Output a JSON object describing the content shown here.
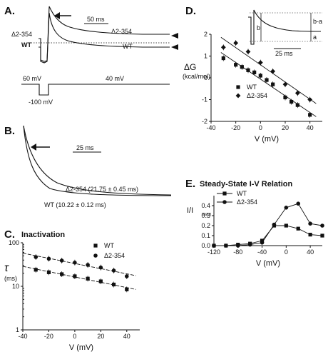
{
  "panels": {
    "A": {
      "label": "A.",
      "scale_bar": "50 ms",
      "trace_labels": {
        "mut_left": "Δ2-354",
        "wt_left": "WT",
        "mut_right": "Δ2-354",
        "wt_right": "WT"
      },
      "protocol": {
        "holding": "60 mV",
        "step": "40 mV",
        "pre": "-100 mV"
      }
    },
    "B": {
      "label": "B.",
      "scale_bar": "25 ms",
      "mut_label": "Δ2-354 (21.75 ± 0.45 ms)",
      "wt_label": "WT (10.22 ± 0.12 ms)"
    },
    "C": {
      "label": "C.",
      "title": "Inactivation"
    },
    "D": {
      "label": "D.",
      "scale_bar": "25 ms",
      "inset_labels": [
        "b",
        "a",
        "b-a"
      ]
    },
    "E": {
      "label": "E.",
      "title": "Steady-State I-V Relation"
    }
  },
  "chart_data": [
    {
      "panel": "C",
      "type": "scatter",
      "title": "Inactivation",
      "xlabel": "V (mV)",
      "ylabel": "τ (ms)",
      "xlim": [
        -40,
        50
      ],
      "ylim": [
        1,
        100
      ],
      "yscale": "log",
      "xticks": [
        -40,
        -20,
        0,
        20,
        40
      ],
      "yticks": [
        1,
        10,
        100
      ],
      "legend_position": "top-right",
      "series": [
        {
          "name": "WT",
          "marker": "square",
          "x": [
            -30,
            -20,
            -10,
            0,
            10,
            20,
            30,
            40
          ],
          "y": [
            24,
            21,
            19,
            17,
            15,
            13,
            11,
            8.5
          ]
        },
        {
          "name": "Δ2-354",
          "marker": "circle",
          "x": [
            -30,
            -20,
            -10,
            0,
            10,
            20,
            30,
            40
          ],
          "y": [
            47,
            43,
            39,
            35,
            31,
            27,
            23,
            17
          ]
        }
      ]
    },
    {
      "panel": "D",
      "type": "scatter",
      "xlabel": "V (mV)",
      "ylabel": "ΔG (kcal/mol)",
      "xlim": [
        -40,
        50
      ],
      "ylim": [
        -2,
        2
      ],
      "xticks": [
        -40,
        -20,
        0,
        20,
        40
      ],
      "yticks": [
        -2,
        -1,
        0,
        1,
        2
      ],
      "legend_position": "bottom-left",
      "series": [
        {
          "name": "WT",
          "marker": "square",
          "x": [
            -30,
            -20,
            -15,
            -10,
            -5,
            0,
            5,
            10,
            20,
            25,
            30,
            40
          ],
          "y": [
            0.9,
            0.6,
            0.5,
            0.35,
            0.25,
            0.1,
            -0.1,
            -0.3,
            -0.9,
            -1.1,
            -1.25,
            -1.7
          ]
        },
        {
          "name": "Δ2-354",
          "marker": "diamond",
          "x": [
            -30,
            -20,
            -10,
            0,
            10,
            20,
            30,
            40
          ],
          "y": [
            1.4,
            1.6,
            1.2,
            0.7,
            0.3,
            -0.3,
            -0.7,
            -1.0
          ]
        }
      ]
    },
    {
      "panel": "E",
      "type": "line",
      "title": "Steady-State I-V Relation",
      "xlabel": "V (mV)",
      "ylabel": "I/Imax",
      "xlim": [
        -120,
        60
      ],
      "ylim": [
        0,
        0.5
      ],
      "xticks": [
        -120,
        -80,
        -40,
        0,
        40
      ],
      "yticks": [
        0.0,
        0.1,
        0.2,
        0.3,
        0.4
      ],
      "legend_position": "top-left",
      "series": [
        {
          "name": "WT",
          "marker": "square",
          "x": [
            -120,
            -100,
            -80,
            -60,
            -40,
            -20,
            0,
            20,
            40,
            60
          ],
          "y": [
            0.0,
            0.0,
            0.01,
            0.02,
            0.05,
            0.2,
            0.2,
            0.17,
            0.11,
            0.1
          ]
        },
        {
          "name": "Δ2-354",
          "marker": "circle",
          "x": [
            -120,
            -100,
            -80,
            -60,
            -40,
            -20,
            0,
            20,
            40,
            60
          ],
          "y": [
            0.0,
            0.0,
            0.0,
            0.01,
            0.03,
            0.21,
            0.38,
            0.42,
            0.22,
            0.2
          ]
        }
      ]
    }
  ]
}
